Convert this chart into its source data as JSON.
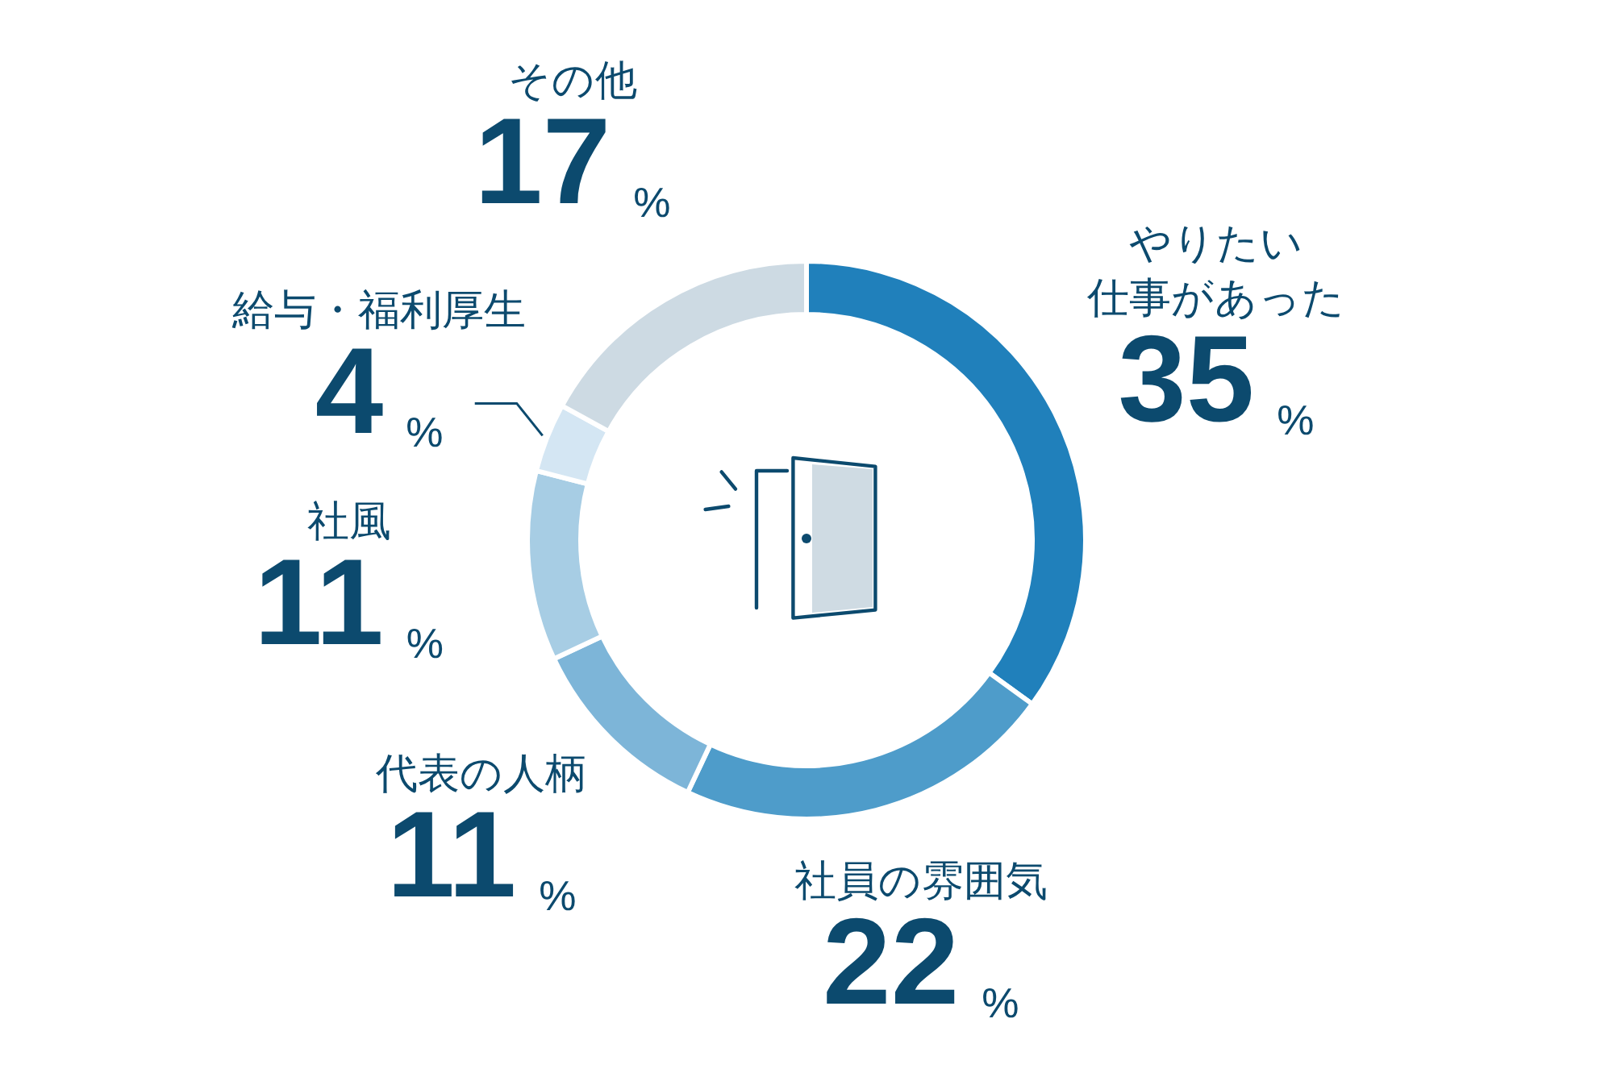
{
  "chart_data": {
    "type": "donut",
    "categories": [
      "やりたい仕事があった",
      "社員の雰囲気",
      "代表の人柄",
      "社風",
      "給与・福利厚生",
      "その他"
    ],
    "values": [
      35,
      22,
      11,
      11,
      4,
      17
    ],
    "value_labels": [
      "35%",
      "22%",
      "11%",
      "11%",
      "4%",
      "17%"
    ],
    "colors": [
      "#2080bb",
      "#4e9cca",
      "#7db5d8",
      "#a7cde4",
      "#d4e6f3",
      "#cddae3"
    ]
  }
}
